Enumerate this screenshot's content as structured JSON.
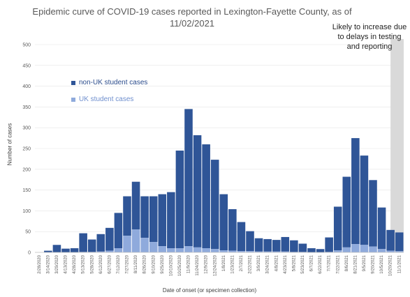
{
  "chart_data": {
    "type": "bar",
    "title": "Epidemic curve of COVID-19 cases reported in Lexington-Fayette County, as of 11/02/2021",
    "xlabel": "Date of onset (or specimen collection)",
    "ylabel": "Number of cases",
    "ylim": [
      0,
      500
    ],
    "yticks": [
      0,
      50,
      100,
      150,
      200,
      250,
      300,
      350,
      400,
      450,
      500
    ],
    "stacked": true,
    "legend_position": "upper-left",
    "annotation": "Likely to increase due to delays in testing and reporting",
    "series": [
      {
        "name": "non-UK student cases",
        "color": "#2f5597"
      },
      {
        "name": "UK student cases",
        "color": "#8faadc"
      }
    ],
    "categories": [
      "2/28/2020",
      "3/14/2020",
      "3/29/2020",
      "4/13/2020",
      "4/28/2020",
      "5/13/2020",
      "5/28/2020",
      "6/12/2020",
      "6/27/2020",
      "7/12/2020",
      "7/27/2020",
      "8/11/2020",
      "8/26/2020",
      "9/10/2020",
      "9/25/2020",
      "10/10/2020",
      "10/25/2020",
      "11/9/2020",
      "11/24/2020",
      "12/9/2020",
      "12/24/2020",
      "1/8/2021",
      "1/23/2021",
      "2/7/2021",
      "2/22/2021",
      "3/9/2021",
      "3/24/2021",
      "4/8/2021",
      "4/23/2021",
      "5/8/2021",
      "5/23/2021",
      "6/7/2021",
      "6/22/2021",
      "7/7/2021",
      "7/22/2021",
      "8/6/2021",
      "8/21/2021",
      "9/5/2021",
      "9/20/2021",
      "10/5/2021",
      "10/20/2021",
      "11/1/2021"
    ],
    "non_uk_values": [
      0,
      4,
      18,
      9,
      10,
      45,
      30,
      42,
      55,
      85,
      95,
      115,
      100,
      110,
      125,
      135,
      235,
      330,
      270,
      250,
      215,
      135,
      100,
      70,
      48,
      32,
      30,
      28,
      35,
      28,
      20,
      10,
      8,
      35,
      105,
      170,
      255,
      215,
      160,
      100,
      50,
      45
    ],
    "uk_values": [
      0,
      0,
      0,
      0,
      0,
      1,
      1,
      2,
      4,
      10,
      40,
      55,
      35,
      25,
      15,
      10,
      10,
      15,
      12,
      10,
      8,
      5,
      4,
      3,
      3,
      2,
      2,
      2,
      2,
      1,
      1,
      0,
      0,
      1,
      5,
      12,
      20,
      18,
      14,
      8,
      4,
      3
    ],
    "shaded_range": [
      "10/20/2021",
      "11/1/2021"
    ]
  }
}
